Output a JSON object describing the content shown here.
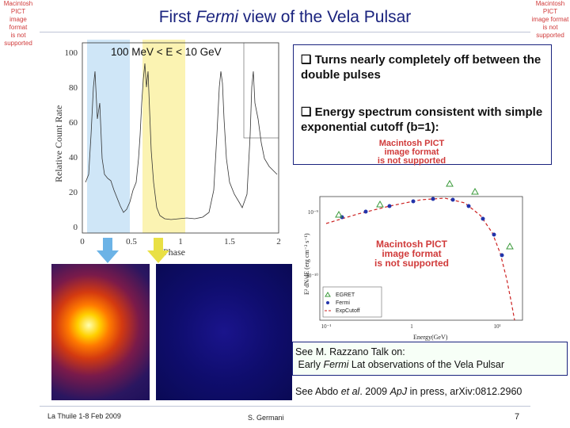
{
  "pict_notice": {
    "line1": "Macintosh PICT",
    "line2": "image format",
    "line3": "is not supported"
  },
  "title": {
    "prefix": "First ",
    "italic": "Fermi",
    "suffix": " view of the Vela Pulsar"
  },
  "phaseogram": {
    "energy_label": "100 MeV < E < 10 GeV",
    "y_ticks": [
      "100",
      "80",
      "60",
      "40",
      "20",
      "0"
    ],
    "x_ticks": [
      "0",
      "0.5",
      "1",
      "1.5",
      "2"
    ],
    "ylabel": "Relative Count Rate",
    "xlabel": "Phase",
    "band_colors": {
      "on_pulse": "#cfe6f7",
      "off_pulse": "#fbf3b2"
    },
    "arrow_colors": {
      "on_pulse": "#6cb3e6",
      "off_pulse": "#e9e045"
    }
  },
  "bullets": {
    "b1": "Turns nearly completely off between the double pulses",
    "b2": "Energy spectrum consistent with simple exponential cutoff (b=1):"
  },
  "spectrum": {
    "ylabel": "E² dN/dE (erg cm⁻² s⁻¹)",
    "xlabel": "Energy(GeV)",
    "y_ticks": [
      "10⁻⁹",
      "10⁻¹⁰"
    ],
    "x_ticks": [
      "10⁻¹",
      "1",
      "10¹"
    ],
    "legend": [
      "EGRET",
      "Fermi",
      "ExpCutoff"
    ],
    "marker_colors": {
      "egret": "#3a9a3a",
      "fermi": "#2233aa",
      "cutoff": "#cc2222"
    }
  },
  "reference_box": {
    "line1": "See M. Razzano Talk on:",
    "line2_pre": "Early ",
    "line2_italic": "Fermi",
    "line2_post": " Lat observations of the Vela Pulsar"
  },
  "citation": {
    "pre": "See Abdo ",
    "etal": "et al",
    "mid": ". 2009 ",
    "journal": "ApJ",
    "post": " in press, arXiv:0812.2960"
  },
  "footer": {
    "left": "La Thuile 1-8 Feb 2009",
    "center": "S. Germani",
    "page": "7"
  }
}
